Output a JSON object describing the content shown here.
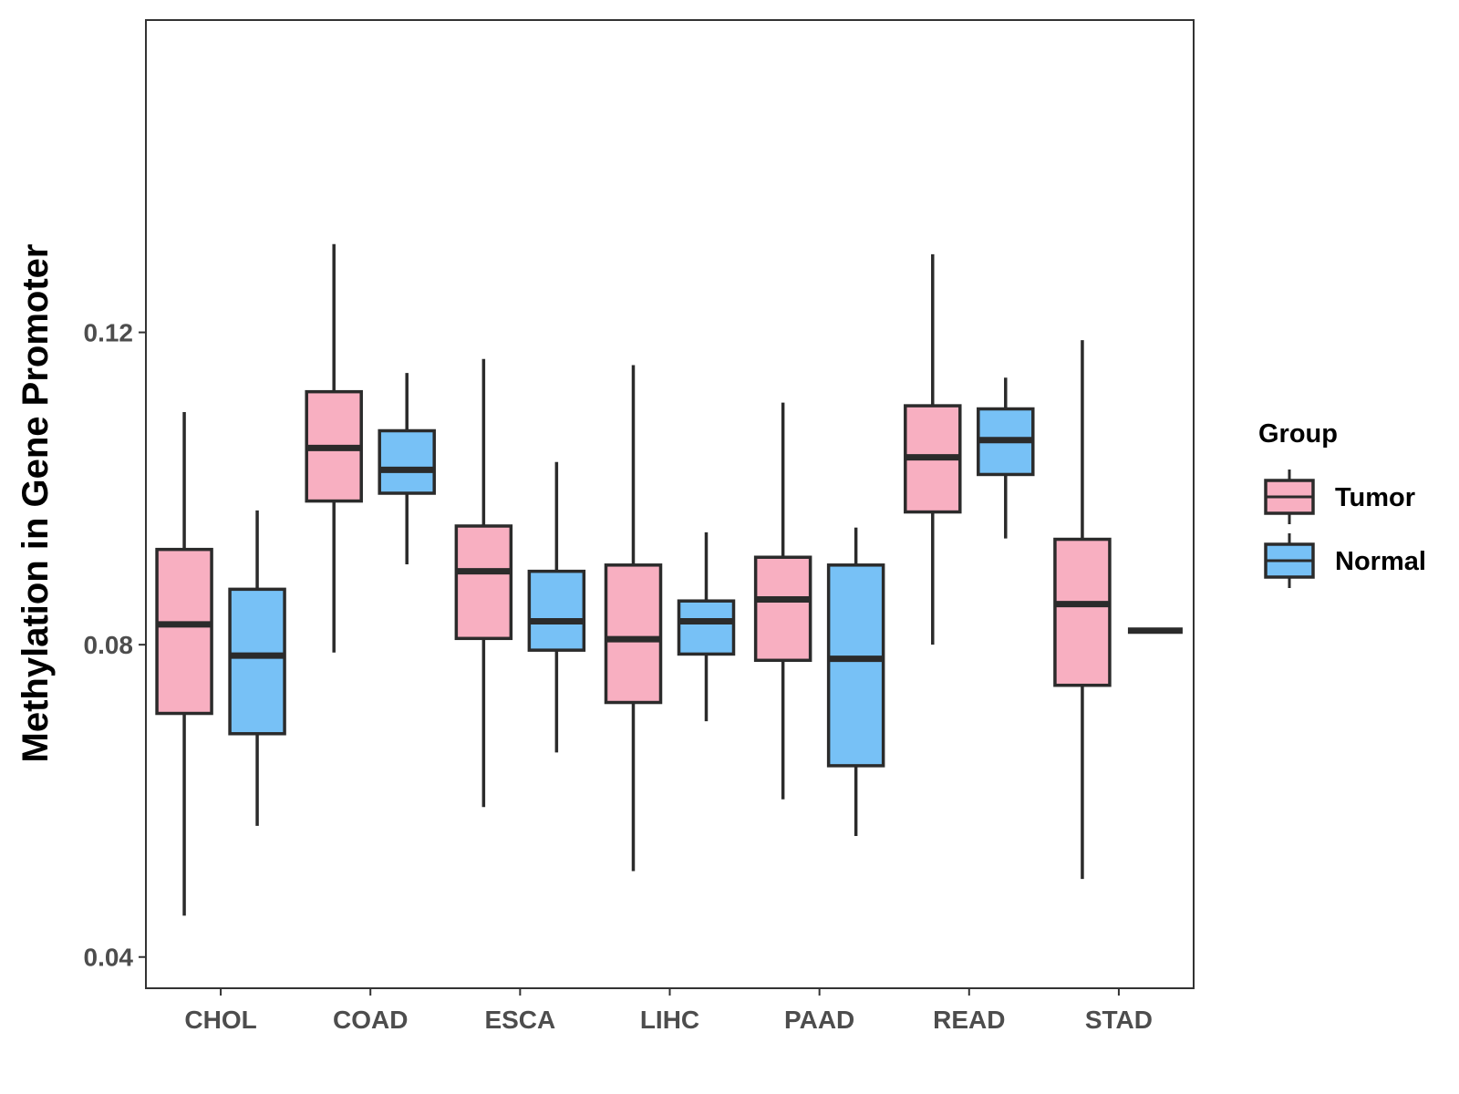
{
  "chart_data": {
    "type": "boxplot",
    "title": "",
    "xlabel": "",
    "ylabel": "Methylation in Gene Promoter",
    "ylim": [
      0.036,
      0.16
    ],
    "yticks": [
      0.04,
      0.08,
      0.12
    ],
    "ytick_labels": [
      "0.04",
      "0.08",
      "0.12"
    ],
    "categories": [
      "CHOL",
      "COAD",
      "ESCA",
      "LIHC",
      "PAAD",
      "READ",
      "STAD"
    ],
    "legend": {
      "title": "Group",
      "position": "right"
    },
    "series": [
      {
        "name": "Tumor",
        "color": "#F8AFC1",
        "boxes": [
          {
            "whisker_low": 0.0453,
            "q1": 0.0712,
            "median": 0.0826,
            "q3": 0.0922,
            "whisker_high": 0.1098
          },
          {
            "whisker_low": 0.079,
            "q1": 0.0984,
            "median": 0.1052,
            "q3": 0.1124,
            "whisker_high": 0.1313
          },
          {
            "whisker_low": 0.0592,
            "q1": 0.0808,
            "median": 0.0894,
            "q3": 0.0952,
            "whisker_high": 0.1166
          },
          {
            "whisker_low": 0.051,
            "q1": 0.0726,
            "median": 0.0807,
            "q3": 0.0902,
            "whisker_high": 0.1158
          },
          {
            "whisker_low": 0.0602,
            "q1": 0.078,
            "median": 0.0858,
            "q3": 0.0912,
            "whisker_high": 0.111
          },
          {
            "whisker_low": 0.08,
            "q1": 0.097,
            "median": 0.104,
            "q3": 0.1106,
            "whisker_high": 0.13
          },
          {
            "whisker_low": 0.05,
            "q1": 0.0748,
            "median": 0.0852,
            "q3": 0.0935,
            "whisker_high": 0.119
          }
        ]
      },
      {
        "name": "Normal",
        "color": "#77C1F6",
        "boxes": [
          {
            "whisker_low": 0.0568,
            "q1": 0.0686,
            "median": 0.0786,
            "q3": 0.0871,
            "whisker_high": 0.0972
          },
          {
            "whisker_low": 0.0903,
            "q1": 0.0994,
            "median": 0.1024,
            "q3": 0.1074,
            "whisker_high": 0.1148
          },
          {
            "whisker_low": 0.0662,
            "q1": 0.0793,
            "median": 0.083,
            "q3": 0.0894,
            "whisker_high": 0.1034
          },
          {
            "whisker_low": 0.0702,
            "q1": 0.0788,
            "median": 0.083,
            "q3": 0.0856,
            "whisker_high": 0.0944
          },
          {
            "whisker_low": 0.0555,
            "q1": 0.0645,
            "median": 0.0782,
            "q3": 0.0902,
            "whisker_high": 0.095
          },
          {
            "whisker_low": 0.0936,
            "q1": 0.1018,
            "median": 0.1062,
            "q3": 0.1102,
            "whisker_high": 0.1142
          },
          {
            "whisker_low": 0.0818,
            "q1": 0.0818,
            "median": 0.0818,
            "q3": 0.0818,
            "whisker_high": 0.0818
          }
        ]
      }
    ]
  }
}
